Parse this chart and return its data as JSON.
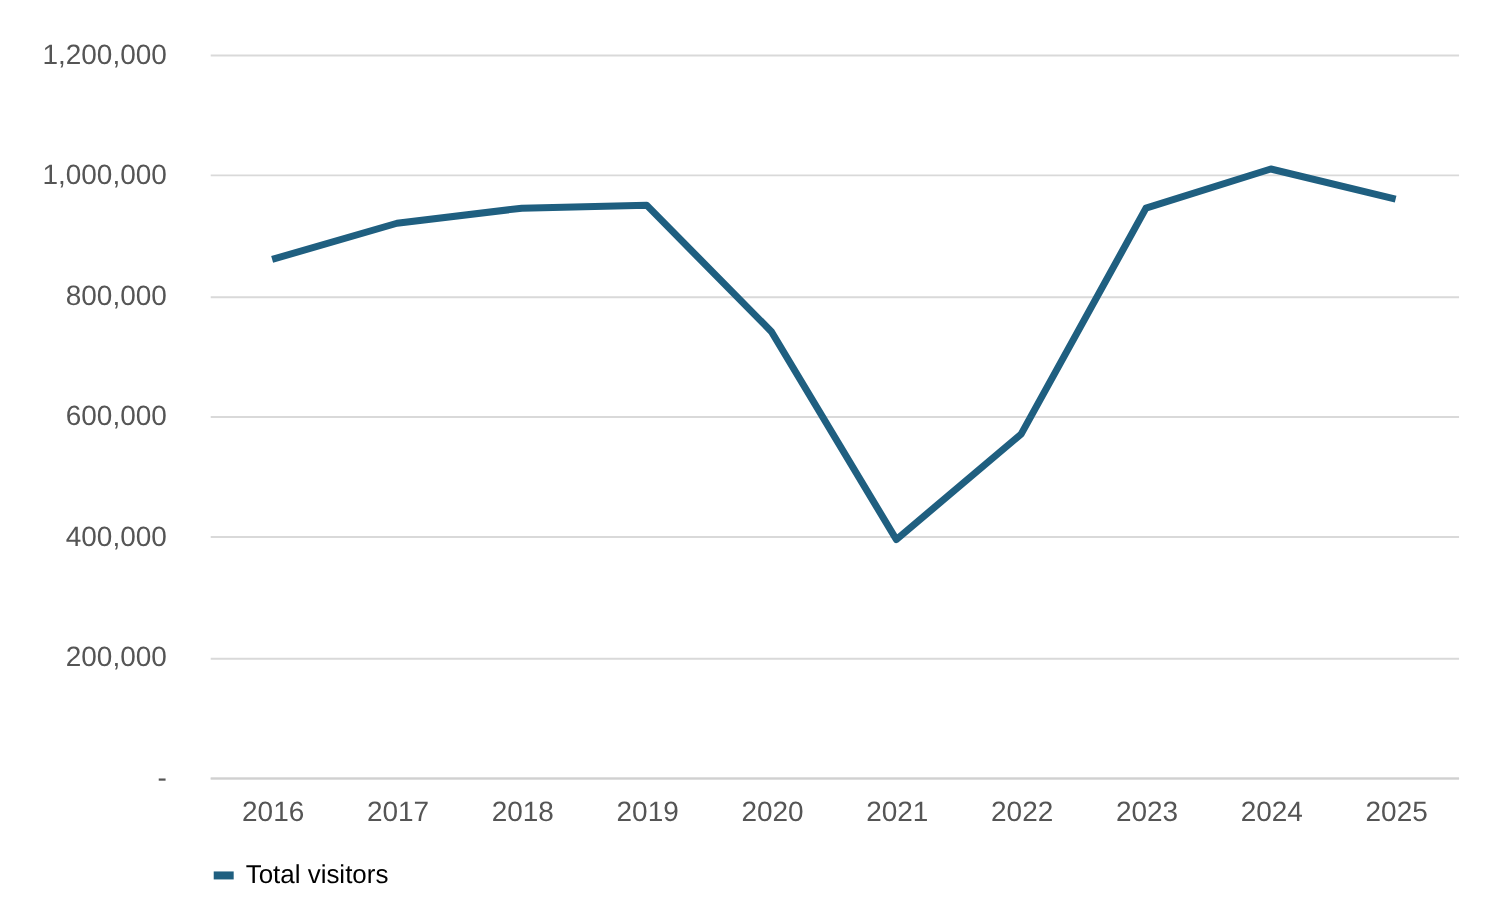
{
  "chart_data": {
    "type": "line",
    "categories": [
      "2016",
      "2017",
      "2018",
      "2019",
      "2020",
      "2021",
      "2022",
      "2023",
      "2024",
      "2025"
    ],
    "series": [
      {
        "name": "Total visitors",
        "color": "#1f5f80",
        "values": [
          860000,
          920000,
          945000,
          950000,
          740000,
          395000,
          570000,
          945000,
          1010000,
          960000
        ]
      }
    ],
    "ylim": [
      0,
      1200000
    ],
    "yticks": [
      {
        "value": 0,
        "label": "-"
      },
      {
        "value": 200000,
        "label": "200,000"
      },
      {
        "value": 400000,
        "label": "400,000"
      },
      {
        "value": 600000,
        "label": "600,000"
      },
      {
        "value": 800000,
        "label": "800,000"
      },
      {
        "value": 1000000,
        "label": "1,000,000"
      },
      {
        "value": 1200000,
        "label": "1,200,000"
      }
    ],
    "grid": "y",
    "legend": "bottom",
    "marker": "none",
    "line_style": "solid"
  }
}
